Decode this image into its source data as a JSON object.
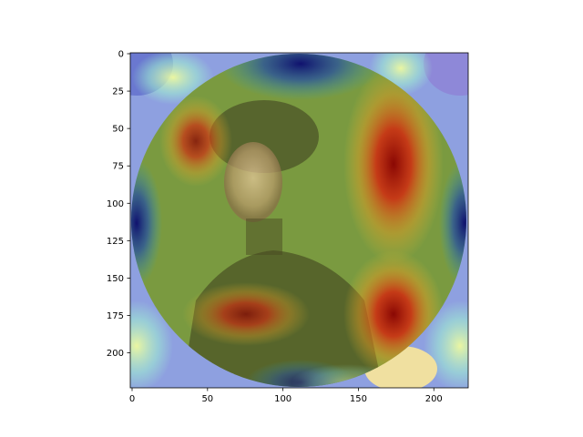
{
  "figure": {
    "background": "#ffffff",
    "image_description_only_colors": {
      "heat_low": "#1a1a8c",
      "heat_mid": "#7fd7a0",
      "heat_high": "#c0221a",
      "portrait_tone": "#a87a3a"
    }
  },
  "axes": {
    "xlim": [
      0,
      224
    ],
    "ylim": [
      224,
      0
    ],
    "x_ticks": [
      {
        "value": 0,
        "label": "0"
      },
      {
        "value": 50,
        "label": "50"
      },
      {
        "value": 100,
        "label": "100"
      },
      {
        "value": 150,
        "label": "150"
      },
      {
        "value": 200,
        "label": "200"
      }
    ],
    "y_ticks": [
      {
        "value": 0,
        "label": "0"
      },
      {
        "value": 25,
        "label": "25"
      },
      {
        "value": 50,
        "label": "50"
      },
      {
        "value": 75,
        "label": "75"
      },
      {
        "value": 100,
        "label": "100"
      },
      {
        "value": 125,
        "label": "125"
      },
      {
        "value": 150,
        "label": "150"
      },
      {
        "value": 175,
        "label": "175"
      },
      {
        "value": 200,
        "label": "200"
      }
    ]
  }
}
